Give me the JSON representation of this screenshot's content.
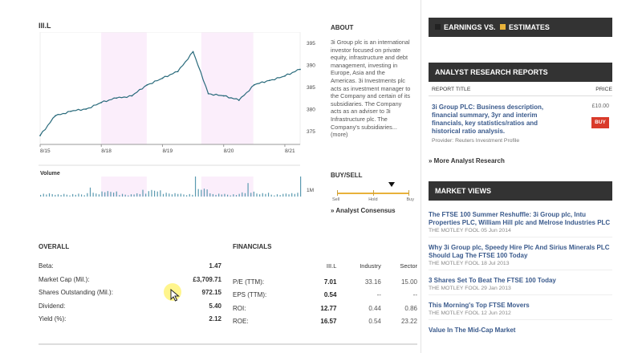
{
  "ticker": "III.L",
  "chart": {
    "y_ticks": [
      "395",
      "390",
      "385",
      "380",
      "375"
    ],
    "x_ticks": [
      "8/15",
      "8/18",
      "8/19",
      "8/20",
      "8/21"
    ],
    "volume_label": "Volume",
    "volume_scale": "1M"
  },
  "chart_data": {
    "type": "line",
    "title": "",
    "ylim": [
      372,
      396
    ],
    "x": [
      "8/15",
      "",
      "",
      "",
      "8/18",
      "",
      "",
      "",
      "8/19",
      "",
      "",
      "",
      "8/20",
      "",
      "",
      "",
      "8/21",
      ""
    ],
    "y": [
      374,
      378.5,
      379.5,
      380,
      381.5,
      382.5,
      383,
      385.5,
      387,
      388.5,
      393,
      383.5,
      383,
      382,
      385.5,
      386.5,
      387.5,
      389
    ],
    "volume": [
      0.15,
      0.1,
      0.12,
      0.2,
      0.35,
      0.1,
      0.15,
      0.45,
      0.2,
      0.12,
      0.6,
      0.15,
      0.1,
      0.3,
      0.2,
      0.1,
      0.2,
      0.55
    ]
  },
  "about": {
    "heading": "ABOUT",
    "text": "3i Group plc is an international investor focused on private equity, infrastructure and debt management, investing in Europe, Asia and the Americas. 3i Investments plc acts as investment manager to the Company and certain of its subsidiaries. The Company acts as an adviser to 3i Infrastructure plc. The Company's subsidiaries...",
    "more": "(more)"
  },
  "buysell": {
    "heading": "BUY/SELL",
    "labels": [
      "Sell",
      "Hold",
      "Buy"
    ],
    "marker_fraction": 0.75,
    "consensus": "» Analyst Consensus"
  },
  "overall": {
    "heading": "OVERALL",
    "rows": [
      {
        "label": "Beta:",
        "value": "1.47"
      },
      {
        "label": "Market Cap (Mil.):",
        "value": "£3,709.71"
      },
      {
        "label": "Shares Outstanding (Mil.):",
        "value": "972.15"
      },
      {
        "label": "Dividend:",
        "value": "5.40"
      },
      {
        "label": "Yield (%):",
        "value": "2.12"
      }
    ]
  },
  "financials": {
    "heading": "FINANCIALS",
    "columns": [
      "",
      "III.L",
      "Industry",
      "Sector"
    ],
    "rows": [
      [
        "P/E (TTM):",
        "7.01",
        "33.16",
        "15.00"
      ],
      [
        "EPS (TTM):",
        "0.54",
        "--",
        "--"
      ],
      [
        "ROI:",
        "12.77",
        "0.44",
        "0.86"
      ],
      [
        "ROE:",
        "16.57",
        "0.54",
        "23.22"
      ]
    ]
  },
  "sidebar": {
    "earnings": {
      "part1": "EARNINGS VS.",
      "part2": "ESTIMATES",
      "sq1_color": "#222222",
      "sq2_color": "#e8b23a"
    },
    "research": {
      "heading": "ANALYST RESEARCH REPORTS",
      "col_title": "REPORT TITLE",
      "col_price": "PRICE",
      "report_title": "3i Group PLC: Business description, financial summary, 3yr and interim financials, key statistics/ratios and historical ratio analysis.",
      "report_price": "£10.00",
      "buy": "BUY",
      "provider": "Provider: Reuters Investment Profile",
      "more": "» More Analyst Research"
    },
    "views": {
      "heading": "MARKET VIEWS",
      "items": [
        {
          "title": "The FTSE 100 Summer Reshuffle: 3i Group plc, Intu Properties PLC, William Hill plc and Melrose Industries PLC",
          "meta": "THE MOTLEY FOOL 05 Jun 2014"
        },
        {
          "title": "Why 3i Group plc, Speedy Hire Plc And Sirius Minerals PLC Should Lag The FTSE 100 Today",
          "meta": "THE MOTLEY FOOL 18 Jul 2013"
        },
        {
          "title": "3 Shares Set To Beat The FTSE 100 Today",
          "meta": "THE MOTLEY FOOL 29 Jan 2013"
        },
        {
          "title": "This Morning's Top FTSE Movers",
          "meta": "THE MOTLEY FOOL 12 Jun 2012"
        },
        {
          "title": "Value In The Mid-Cap Market",
          "meta": ""
        }
      ]
    }
  }
}
